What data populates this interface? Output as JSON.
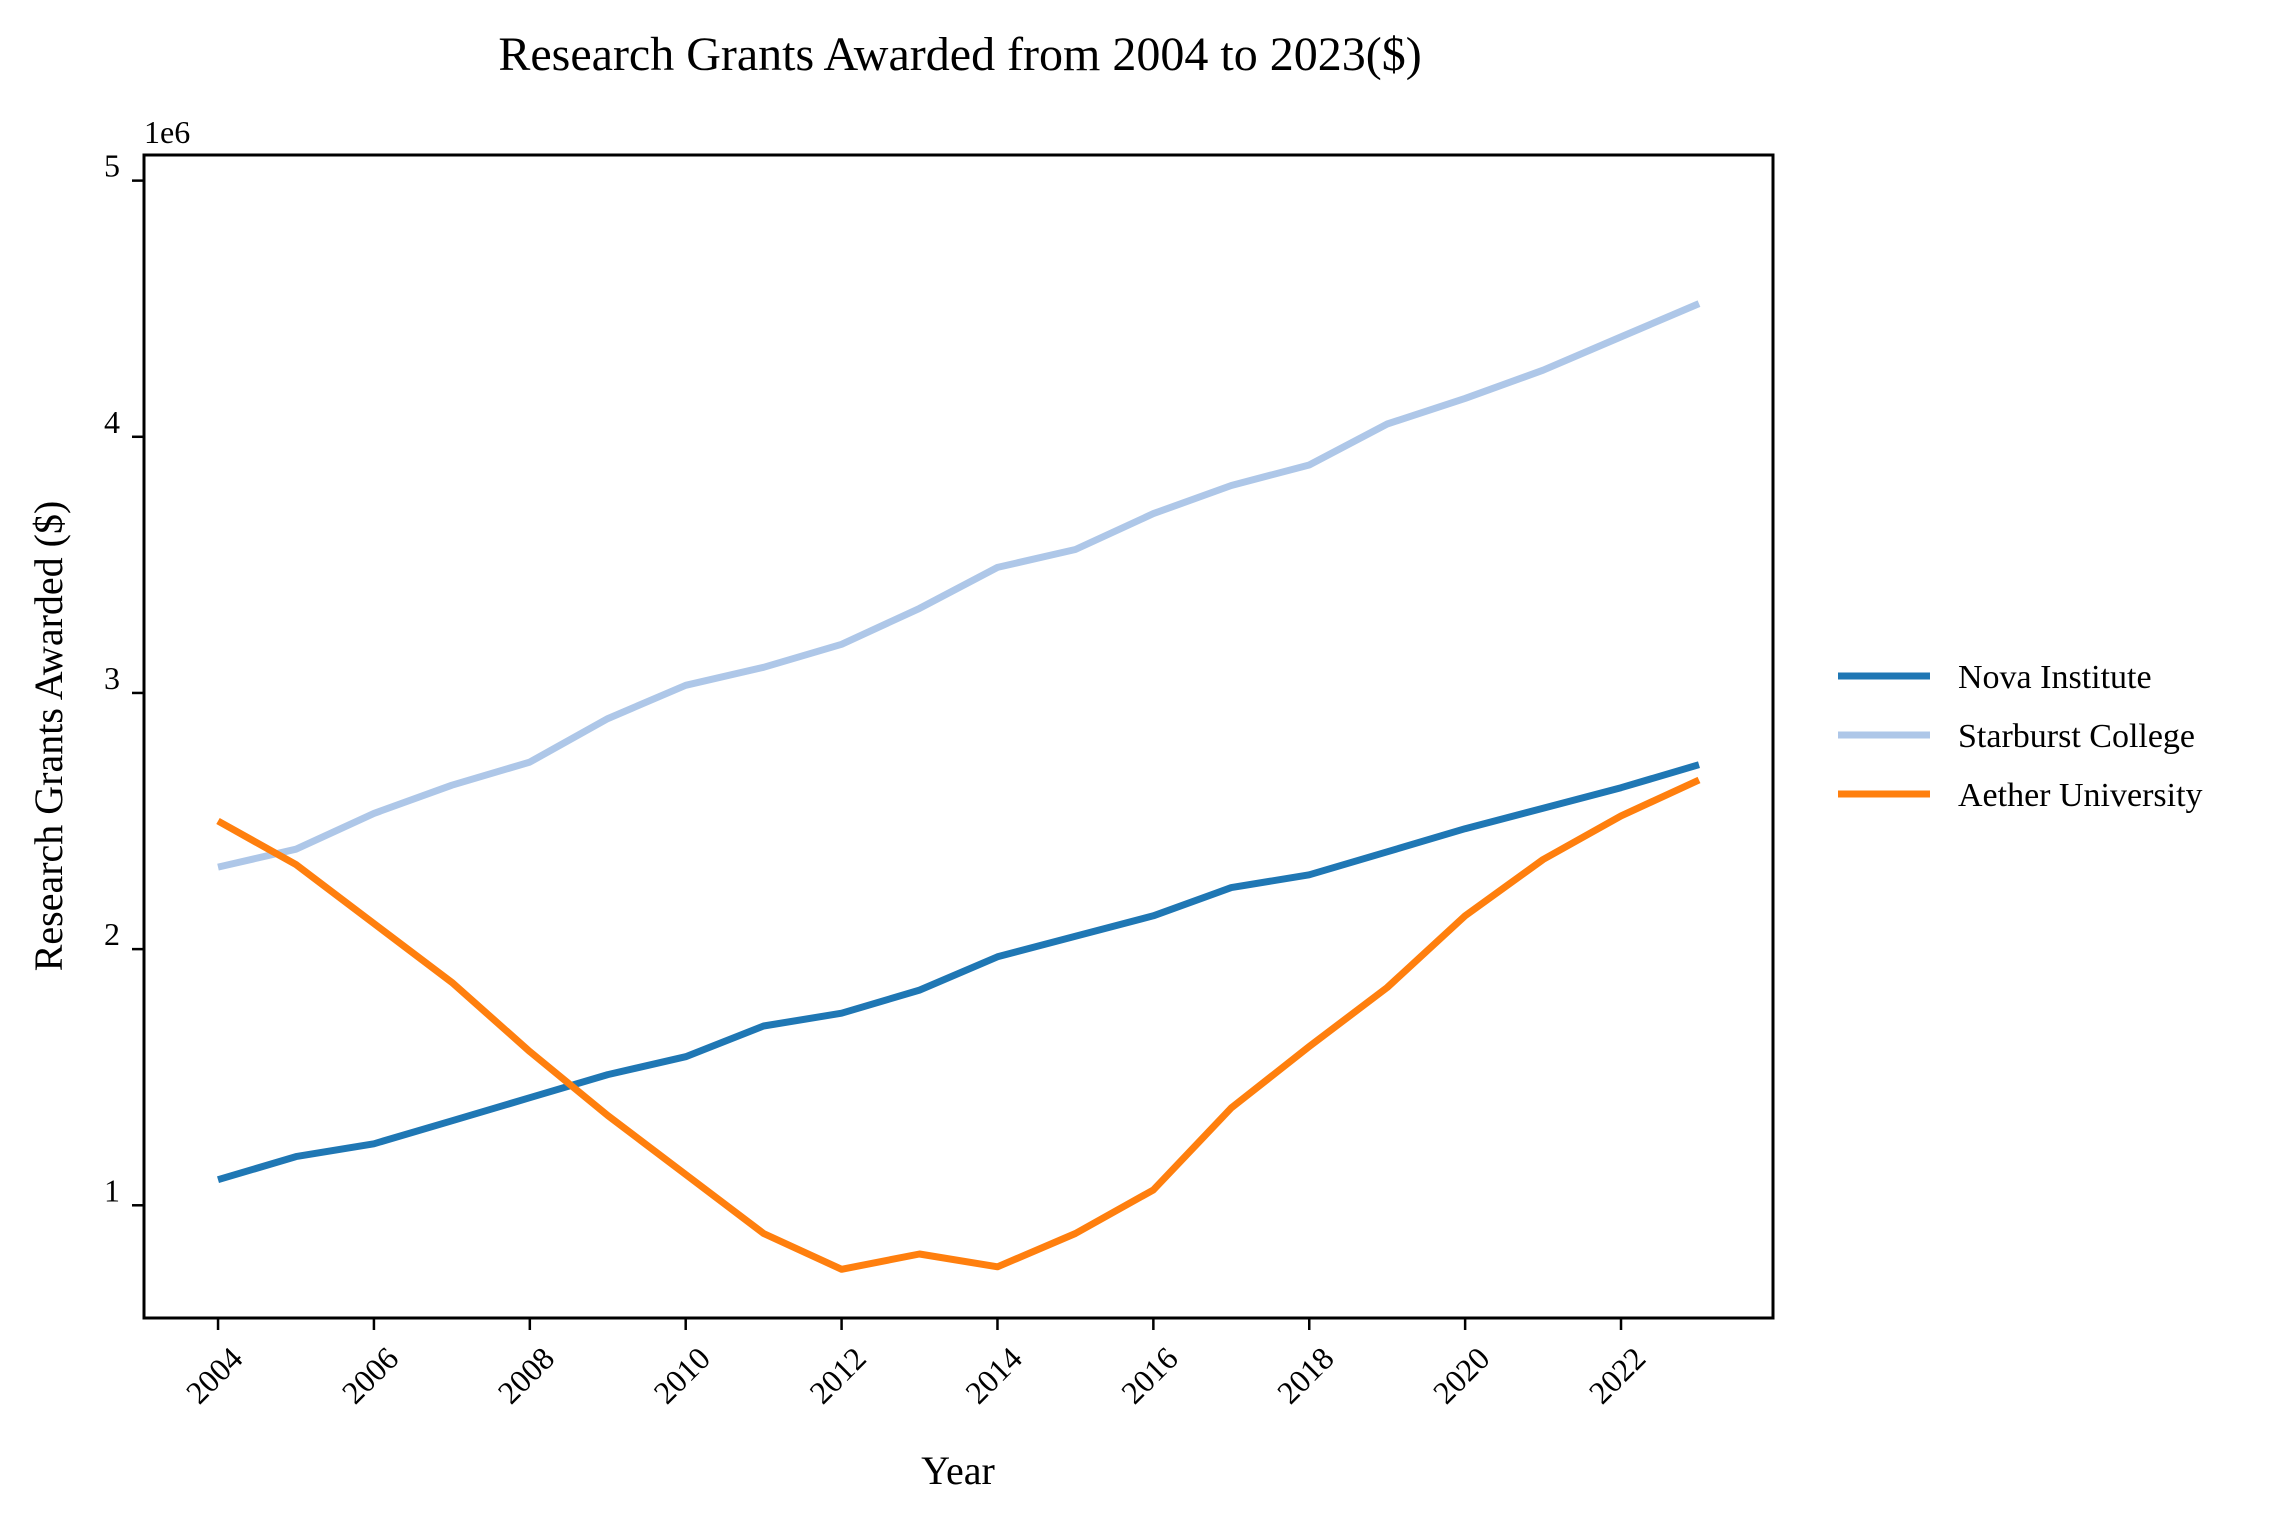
{
  "chart_data": {
    "type": "line",
    "title": "Research Grants Awarded from 2004 to 2023($)",
    "xlabel": "Year",
    "ylabel": "Research Grants Awarded ($)",
    "y_offset_label": "1e6",
    "x": [
      2004,
      2005,
      2006,
      2007,
      2008,
      2009,
      2010,
      2011,
      2012,
      2013,
      2014,
      2015,
      2016,
      2017,
      2018,
      2019,
      2020,
      2021,
      2022,
      2023
    ],
    "xlim": [
      2003.05,
      2023.95
    ],
    "ylim": [
      560000,
      5100000
    ],
    "x_ticks": [
      2004,
      2006,
      2008,
      2010,
      2012,
      2014,
      2016,
      2018,
      2020,
      2022
    ],
    "x_tick_labels": [
      "2004",
      "2006",
      "2008",
      "2010",
      "2012",
      "2014",
      "2016",
      "2018",
      "2020",
      "2022"
    ],
    "y_ticks": [
      1000000,
      2000000,
      3000000,
      4000000,
      5000000
    ],
    "y_tick_labels": [
      "1",
      "2",
      "3",
      "4",
      "5"
    ],
    "grid": false,
    "legend_position": "right, outside plot",
    "series": [
      {
        "name": "Nova Institute",
        "color": "#1f77b4",
        "values": [
          1100000,
          1190000,
          1240000,
          1330000,
          1420000,
          1510000,
          1580000,
          1700000,
          1750000,
          1840000,
          1970000,
          2050000,
          2130000,
          2240000,
          2290000,
          2380000,
          2470000,
          2550000,
          2630000,
          2720000
        ]
      },
      {
        "name": "Starburst College",
        "color": "#aec7e8",
        "values": [
          2320000,
          2390000,
          2530000,
          2640000,
          2730000,
          2900000,
          3030000,
          3100000,
          3190000,
          3330000,
          3490000,
          3560000,
          3700000,
          3810000,
          3890000,
          4050000,
          4150000,
          4260000,
          4390000,
          4520000
        ]
      },
      {
        "name": "Aether University",
        "color": "#ff7f0e",
        "values": [
          2500000,
          2330000,
          2100000,
          1870000,
          1600000,
          1350000,
          1120000,
          890000,
          750000,
          810000,
          760000,
          890000,
          1060000,
          1380000,
          1620000,
          1850000,
          2130000,
          2350000,
          2520000,
          2660000
        ]
      }
    ]
  }
}
